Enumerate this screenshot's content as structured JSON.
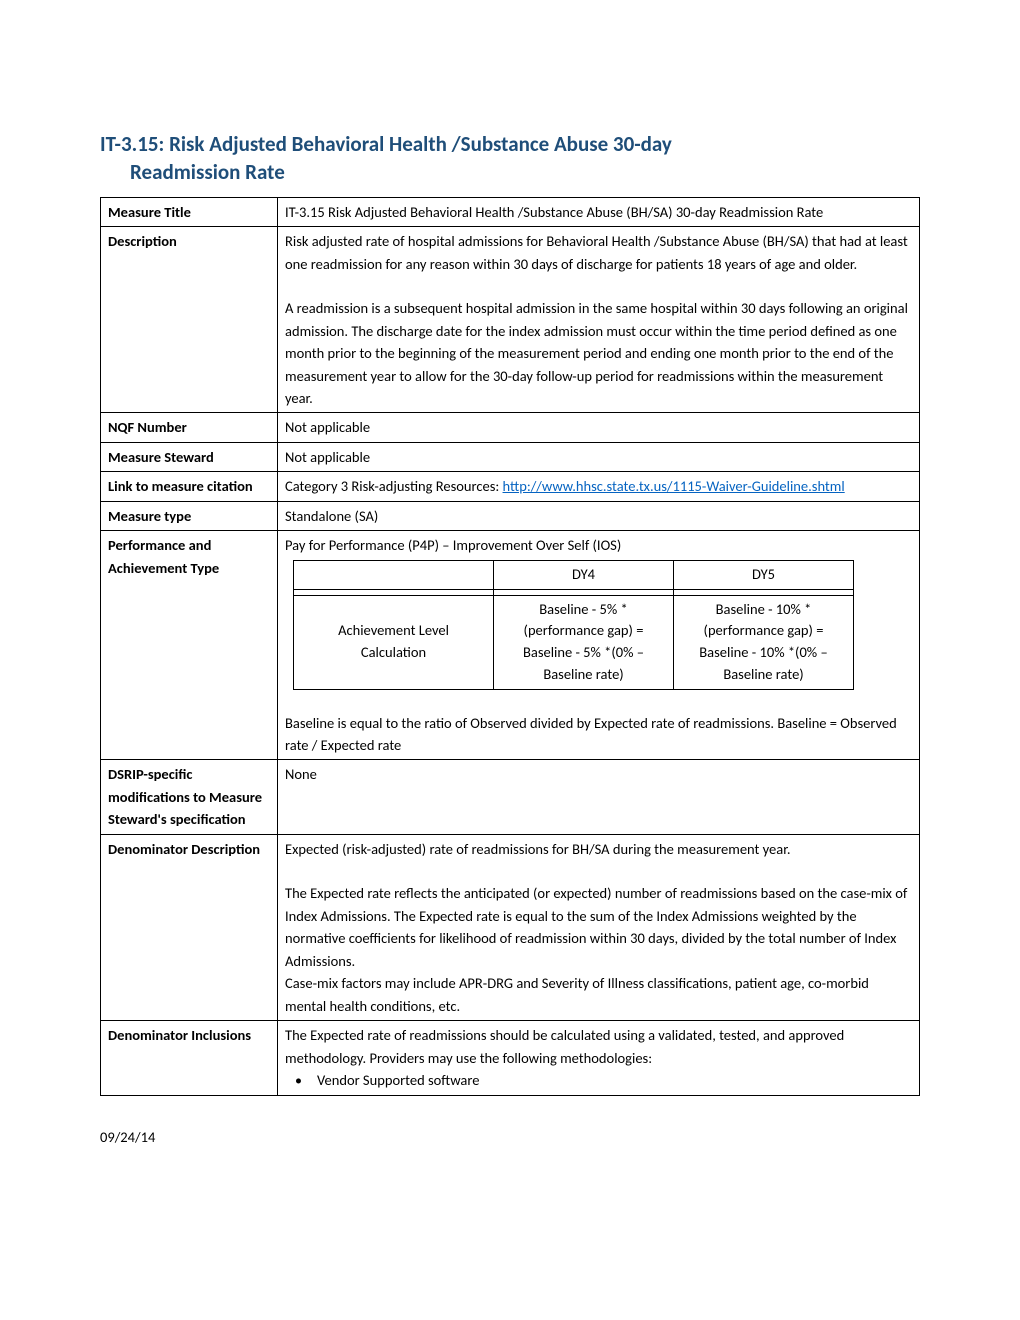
{
  "title_line1": "IT-3.15:  Risk Adjusted Behavioral Health /Substance Abuse 30-day",
  "title_line2": "Readmission Rate",
  "rows": {
    "measure_title": {
      "label": "Measure Title",
      "value": "IT-3.15 Risk Adjusted Behavioral Health /Substance Abuse (BH/SA) 30-day Readmission Rate"
    },
    "description": {
      "label": "Description",
      "p1": "Risk adjusted rate of hospital admissions for Behavioral Health /Substance Abuse (BH/SA) that had at least one readmission for any reason within 30 days of discharge for patients 18 years of age and older.",
      "p2": "A readmission is a subsequent hospital admission in the same hospital within 30 days following an original admission. The discharge date for the index admission must occur within the time period defined as one month prior to the beginning of the measurement period and ending one month prior to the end of the measurement year to allow for the 30-day follow-up period for readmissions within the measurement year."
    },
    "nqf_number": {
      "label": "NQF Number",
      "value": "Not applicable"
    },
    "measure_steward": {
      "label": "Measure Steward",
      "value": "Not applicable"
    },
    "link_citation": {
      "label": "Link to measure citation",
      "prefix": "Category 3 Risk-adjusting Resources: ",
      "link_text": "http://www.hhsc.state.tx.us/1115-Waiver-Guideline.shtml"
    },
    "measure_type": {
      "label": "Measure type",
      "value": "Standalone (SA)"
    },
    "performance": {
      "label": "Performance and Achievement Type",
      "intro": "Pay for Performance (P4P) – Improvement Over Self (IOS)",
      "table": {
        "header": {
          "c1": "",
          "c2": "DY4",
          "c3": "DY5"
        },
        "row1_c1": "Achievement Level Calculation",
        "row1_c2": "Baseline - 5% *(performance gap) =\nBaseline - 5% *(0% – Baseline rate)",
        "row1_c3": "Baseline - 10% *(performance gap) =\nBaseline - 10% *(0% – Baseline rate)"
      },
      "footer": "Baseline is equal to the ratio of Observed divided by Expected rate of readmissions. Baseline = Observed rate / Expected rate"
    },
    "dsrip": {
      "label": "DSRIP-specific modifications to Measure Steward's specification",
      "value": "None"
    },
    "denom_desc": {
      "label": "Denominator Description",
      "p1": "Expected (risk-adjusted) rate of readmissions for BH/SA during the measurement year.",
      "p2": "The Expected rate reflects the anticipated (or expected) number of readmissions based on the case-mix of Index Admissions. The Expected rate is equal to the sum of the Index Admissions weighted by the normative coefficients for likelihood of readmission within 30 days, divided by the total number of Index Admissions.",
      "p3": "Case-mix factors may include APR-DRG and Severity of Illness classifications, patient age, co-morbid mental health conditions, etc."
    },
    "denom_incl": {
      "label": "Denominator Inclusions",
      "p1": "The Expected rate of readmissions should be calculated using a validated, tested, and approved methodology. Providers may use the following methodologies:",
      "bullet1": "Vendor Supported software"
    }
  },
  "footer_date": "09/24/14",
  "colors": {
    "title": "#1F4E79",
    "link": "#0563C1",
    "text": "#000000",
    "border": "#000000",
    "bg": "#ffffff"
  },
  "typography": {
    "body_fontsize": 14.5,
    "title_fontsize": 21,
    "font_family": "Calibri"
  }
}
